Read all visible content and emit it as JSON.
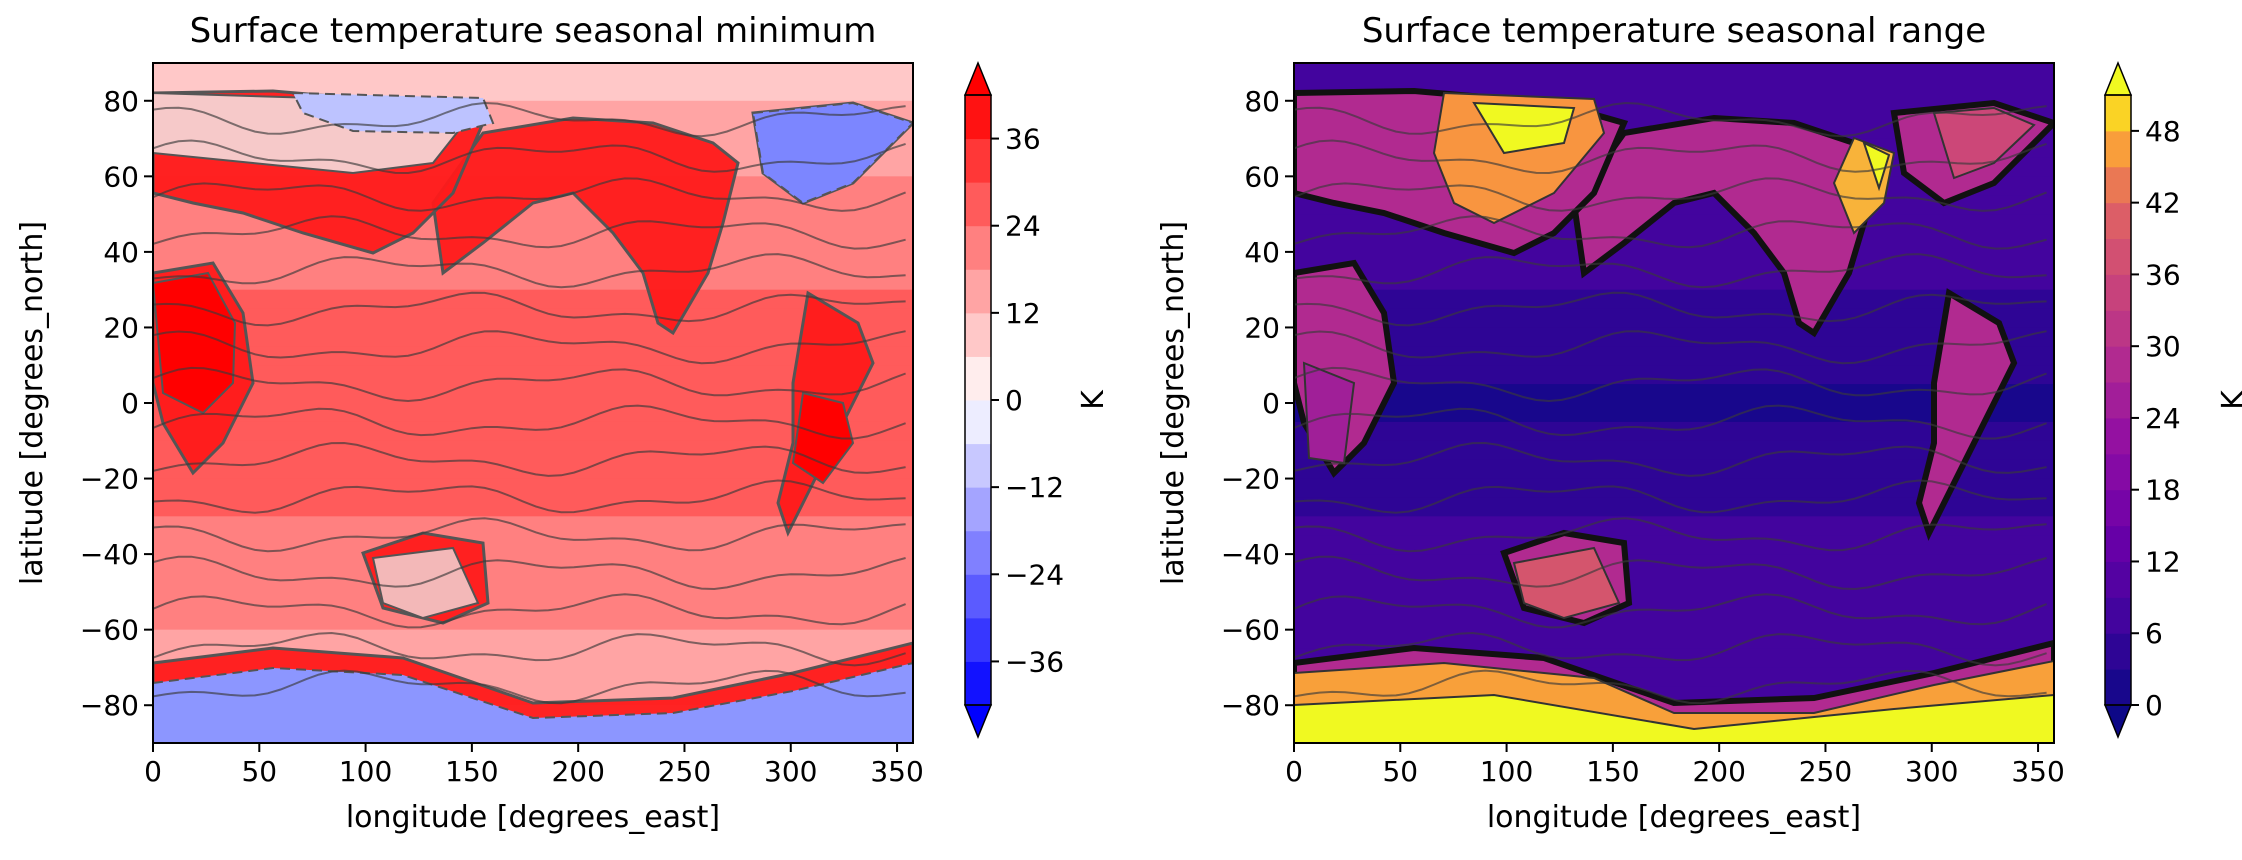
{
  "chart_data": [
    {
      "type": "heatmap",
      "subtype": "filled-contour map",
      "title": "Surface temperature seasonal minimum",
      "xlabel": "longitude [degrees_east]",
      "ylabel": "latitude [degrees_north]",
      "xlim": [
        0,
        357.5
      ],
      "ylim": [
        -90,
        90
      ],
      "xticks": [
        0,
        50,
        100,
        150,
        200,
        250,
        300,
        350
      ],
      "yticks": [
        -80,
        -60,
        -40,
        -20,
        0,
        20,
        40,
        60,
        80
      ],
      "colorbar": {
        "label": "K",
        "colormap": "bwr",
        "range": [
          -42,
          42
        ],
        "level_step": 6,
        "ticks": [
          -36,
          -24,
          -12,
          0,
          12,
          24,
          36
        ],
        "extend": "both"
      },
      "features": {
        "ocean_tropics": 26,
        "ocean_poles": 9,
        "greenland": -16,
        "antarctica": -25,
        "north_asia": 4
      }
    },
    {
      "type": "heatmap",
      "subtype": "filled-contour map",
      "title": "Surface temperature seasonal range",
      "xlabel": "longitude [degrees_east]",
      "ylabel": "latitude [degrees_north]",
      "xlim": [
        0,
        357.5
      ],
      "ylim": [
        -90,
        90
      ],
      "xticks": [
        0,
        50,
        100,
        150,
        200,
        250,
        300,
        350
      ],
      "yticks": [
        -80,
        -60,
        -40,
        -20,
        0,
        20,
        40,
        60,
        80
      ],
      "colorbar": {
        "label": "K",
        "colormap": "plasma",
        "range": [
          0,
          51
        ],
        "level_step": 3,
        "ticks": [
          0,
          6,
          12,
          18,
          24,
          30,
          36,
          42,
          48
        ],
        "extend": "both"
      },
      "features": {
        "ocean_equator": 2,
        "ocean_midlat": 8,
        "siberia": 45,
        "north_america": 40,
        "antarctica_interior": 50,
        "australia": 18
      }
    }
  ]
}
